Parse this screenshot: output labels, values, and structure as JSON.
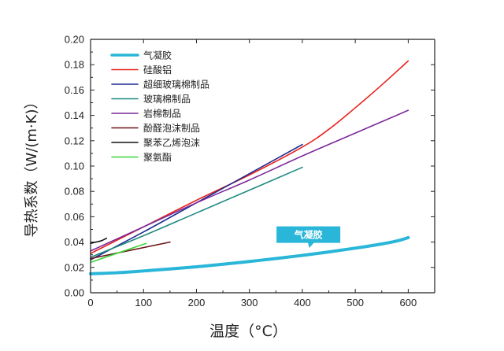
{
  "chart_data": {
    "type": "line",
    "xlabel": "温度（°C）",
    "ylabel": "导热系数（W/(m·K)）",
    "xlim": [
      0,
      650
    ],
    "ylim": [
      0,
      0.2
    ],
    "x_ticks": [
      "0",
      "100",
      "200",
      "300",
      "400",
      "500",
      "600"
    ],
    "y_ticks": [
      "0.00",
      "0.02",
      "0.04",
      "0.06",
      "0.08",
      "0.10",
      "0.12",
      "0.14",
      "0.16",
      "0.18",
      "0.20"
    ],
    "x_tick_values": [
      0,
      100,
      200,
      300,
      400,
      500,
      600
    ],
    "y_tick_values": [
      0,
      0.02,
      0.04,
      0.06,
      0.08,
      0.1,
      0.12,
      0.14,
      0.16,
      0.18,
      0.2
    ],
    "grid": false,
    "legend_position": "top-left",
    "annotation": {
      "text": "气凝胶",
      "x": 410,
      "y": 0.031
    },
    "series": [
      {
        "name": "气凝胶",
        "color": "#29b6d8",
        "width": 4,
        "x": [
          0,
          50,
          100,
          150,
          200,
          250,
          300,
          350,
          400,
          450,
          500,
          550,
          580,
          600
        ],
        "y": [
          0.015,
          0.0158,
          0.0172,
          0.0188,
          0.0205,
          0.0225,
          0.0247,
          0.027,
          0.0295,
          0.0322,
          0.0352,
          0.0385,
          0.041,
          0.0435
        ]
      },
      {
        "name": "硅酸铝",
        "color": "#e8231f",
        "width": 1.6,
        "x": [
          0,
          100,
          200,
          300,
          400,
          450,
          500,
          550,
          600
        ],
        "y": [
          0.031,
          0.052,
          0.073,
          0.093,
          0.115,
          0.129,
          0.146,
          0.164,
          0.183
        ]
      },
      {
        "name": "超细玻璃棉制品",
        "color": "#1f2e8f",
        "width": 1.6,
        "x": [
          0,
          100,
          200,
          300,
          400
        ],
        "y": [
          0.026,
          0.048,
          0.071,
          0.094,
          0.117
        ]
      },
      {
        "name": "玻璃棉制品",
        "color": "#1f8a80",
        "width": 1.6,
        "x": [
          0,
          100,
          200,
          300,
          400
        ],
        "y": [
          0.028,
          0.045,
          0.063,
          0.081,
          0.099
        ]
      },
      {
        "name": "岩棉制品",
        "color": "#7a2a9a",
        "width": 1.6,
        "x": [
          0,
          100,
          200,
          300,
          400,
          500,
          600
        ],
        "y": [
          0.033,
          0.052,
          0.071,
          0.089,
          0.108,
          0.126,
          0.144
        ]
      },
      {
        "name": "酚醛泡沫制品",
        "color": "#6b1418",
        "width": 1.6,
        "x": [
          0,
          150
        ],
        "y": [
          0.027,
          0.04
        ]
      },
      {
        "name": "聚苯乙烯泡沫",
        "color": "#111111",
        "width": 1.6,
        "x": [
          0,
          10,
          20,
          30
        ],
        "y": [
          0.039,
          0.04,
          0.041,
          0.043
        ]
      },
      {
        "name": "聚氨酯",
        "color": "#39d53a",
        "width": 1.6,
        "x": [
          0,
          105
        ],
        "y": [
          0.024,
          0.039
        ]
      }
    ]
  }
}
